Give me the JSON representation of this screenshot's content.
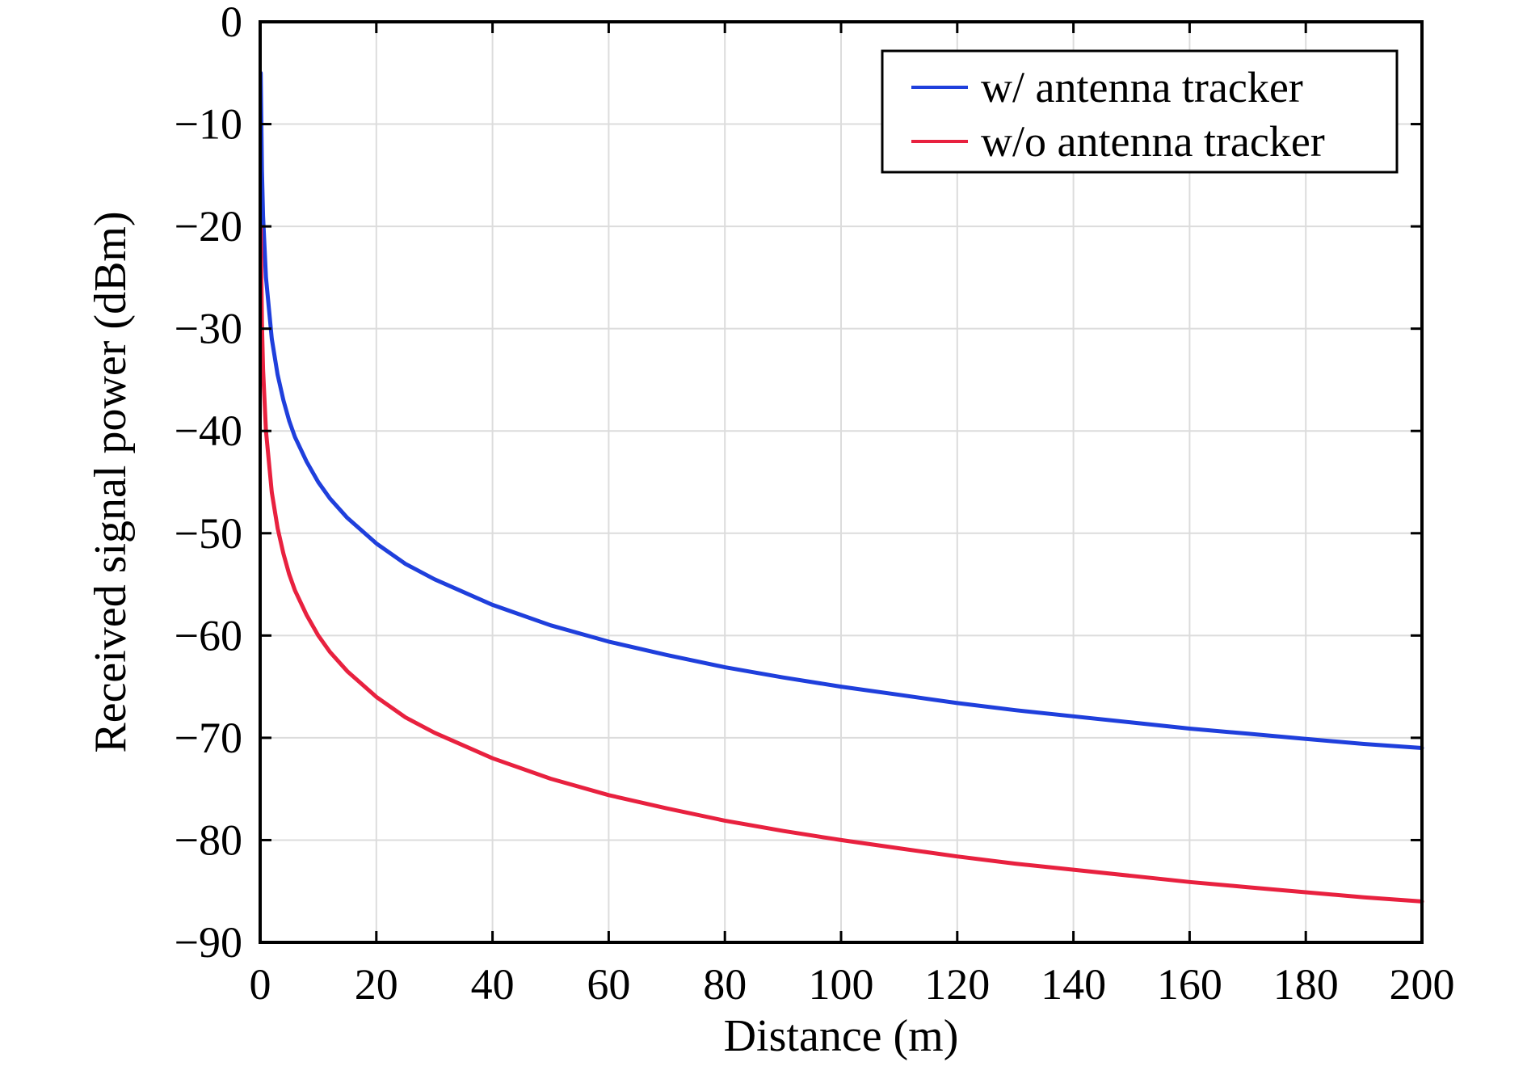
{
  "chart_data": {
    "type": "line",
    "title": "",
    "xlabel": "Distance (m)",
    "ylabel": "Received signal power (dBm)",
    "xlim": [
      0,
      200
    ],
    "ylim": [
      -90,
      0
    ],
    "xticks": [
      0,
      20,
      40,
      60,
      80,
      100,
      120,
      140,
      160,
      180,
      200
    ],
    "yticks": [
      0,
      -10,
      -20,
      -30,
      -40,
      -50,
      -60,
      -70,
      -80,
      -90
    ],
    "xtick_labels": [
      "0",
      "20",
      "40",
      "60",
      "80",
      "100",
      "120",
      "140",
      "160",
      "180",
      "200"
    ],
    "ytick_labels": [
      "0",
      "−10",
      "−20",
      "−30",
      "−40",
      "−50",
      "−60",
      "−70",
      "−80",
      "−90"
    ],
    "grid": true,
    "legend_position": "top-right",
    "series": [
      {
        "name": "w/ antenna tracker",
        "color": "#1f3fdc",
        "x": [
          0.1,
          0.3,
          0.5,
          1,
          2,
          3,
          4,
          5,
          6,
          8,
          10,
          12,
          15,
          20,
          25,
          30,
          40,
          50,
          60,
          70,
          80,
          90,
          100,
          110,
          120,
          130,
          140,
          150,
          160,
          170,
          180,
          190,
          200
        ],
        "y": [
          -5,
          -14.5,
          -19,
          -25,
          -31,
          -34.5,
          -37,
          -39,
          -40.6,
          -43,
          -45,
          -46.6,
          -48.5,
          -51,
          -53,
          -54.5,
          -57,
          -59,
          -60.6,
          -61.9,
          -63.1,
          -64.1,
          -65,
          -65.8,
          -66.6,
          -67.3,
          -67.9,
          -68.5,
          -69.1,
          -69.6,
          -70.1,
          -70.6,
          -71
        ]
      },
      {
        "name": "w/o antenna tracker",
        "color": "#e8213f",
        "x": [
          0.1,
          0.3,
          0.5,
          1,
          2,
          3,
          4,
          5,
          6,
          8,
          10,
          12,
          15,
          20,
          25,
          30,
          40,
          50,
          60,
          70,
          80,
          90,
          100,
          110,
          120,
          130,
          140,
          150,
          160,
          170,
          180,
          190,
          200
        ],
        "y": [
          -20,
          -29.5,
          -34,
          -40,
          -46,
          -49.5,
          -52,
          -54,
          -55.6,
          -58,
          -60,
          -61.6,
          -63.5,
          -66,
          -68,
          -69.5,
          -72,
          -74,
          -75.6,
          -76.9,
          -78.1,
          -79.1,
          -80,
          -80.8,
          -81.6,
          -82.3,
          -82.9,
          -83.5,
          -84.1,
          -84.6,
          -85.1,
          -85.6,
          -86
        ]
      }
    ]
  }
}
